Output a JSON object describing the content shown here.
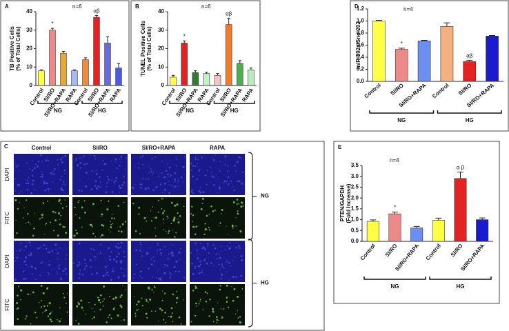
{
  "chart_data": [
    {
      "type": "bar",
      "panel": "A",
      "n_label": "n=6",
      "y_label": [
        "TB Positive Cells",
        "(% of Total Cells)"
      ],
      "categories": [
        "Control",
        "SI/RO",
        "SI/RO+RAPA",
        "RAPA",
        "Control",
        "SI/RO",
        "SI/RO+RAPA",
        "RAPA"
      ],
      "values": [
        8,
        30,
        17.5,
        8,
        14,
        37,
        23,
        9.5
      ],
      "errors": [
        0.5,
        1,
        1,
        0.5,
        1,
        1,
        3.5,
        2.5
      ],
      "colors": [
        "#ffff44",
        "#ec8a8a",
        "#e4a83c",
        "#a8b8f0",
        "#f08a3c",
        "#e52222",
        "#6a6ad8",
        "#4a5ae6"
      ],
      "bar_labels": [
        null,
        "*",
        null,
        null,
        null,
        "αβ",
        null,
        null
      ],
      "groups": [
        "NG",
        "HG"
      ],
      "ylim": [
        0,
        40
      ],
      "yticks": [
        0,
        10,
        20,
        30,
        40
      ]
    },
    {
      "type": "bar",
      "panel": "B",
      "n_label": "n=6",
      "y_label": [
        "TUNEL Positive Cells",
        "(% of Total Cells)"
      ],
      "categories": [
        "Control",
        "SI/RO",
        "SI/RO+RAPA",
        "RAPA",
        "Control",
        "SI/RO",
        "SI/RO+RAPA",
        "RAPA"
      ],
      "values": [
        4.5,
        23,
        7,
        6.5,
        5.5,
        33,
        12,
        8.5
      ],
      "errors": [
        1,
        1.2,
        1,
        0.7,
        1,
        3.5,
        1.5,
        1
      ],
      "colors": [
        "#ffff44",
        "#e52222",
        "#2e7d32",
        "#c4f0c4",
        "#f4c4c4",
        "#f07c2a",
        "#4cae4c",
        "#b8ecb8"
      ],
      "bar_labels": [
        null,
        "*",
        null,
        null,
        null,
        "αβ",
        null,
        null
      ],
      "groups": [
        "NG",
        "HG"
      ],
      "ylim": [
        0,
        40
      ],
      "yticks": [
        0,
        10,
        20,
        30,
        40
      ]
    },
    {
      "type": "bar",
      "panel": "D",
      "n_label": "n=4",
      "y_label": [
        "miR-302a/Sno-202"
      ],
      "categories": [
        "Control",
        "SI/RO",
        "SI/RO+RAPA",
        "Control",
        "SI/RO",
        "SI/RO+RAPA"
      ],
      "values": [
        1.0,
        0.53,
        0.67,
        0.91,
        0.33,
        0.75
      ],
      "errors": [
        0.01,
        0.02,
        0.01,
        0.06,
        0.02,
        0.01
      ],
      "colors": [
        "#ffff44",
        "#ec8a8a",
        "#6b8ef0",
        "#f4b080",
        "#e52222",
        "#1a1ad0"
      ],
      "bar_labels": [
        null,
        "*",
        null,
        null,
        "αβ",
        null
      ],
      "groups": [
        "NG",
        "HG"
      ],
      "ylim": [
        0,
        1.2
      ],
      "yticks": [
        {
          "value": 0,
          "label": "0.0"
        },
        0.2,
        0.4,
        0.6,
        0.8,
        {
          "value": 1,
          "label": "1.0"
        },
        1.2
      ]
    },
    {
      "type": "bar",
      "panel": "E",
      "n_label": "n=4",
      "y_label": [
        "PTEN/GAPDH",
        "(Fold Increase)"
      ],
      "categories": [
        "Control",
        "SI/RO",
        "SI/RO+RAPA",
        "Control",
        "SI/RO",
        "SI/RO+RAPA"
      ],
      "values": [
        0.92,
        1.27,
        0.62,
        0.97,
        2.9,
        1.0
      ],
      "errors": [
        0.07,
        0.08,
        0.07,
        0.1,
        0.3,
        0.08
      ],
      "colors": [
        "#ffff44",
        "#ec8a8a",
        "#6b8ef0",
        "#ffff44",
        "#e52222",
        "#1a1ad0"
      ],
      "bar_labels": [
        null,
        "*",
        null,
        null,
        "α β",
        null
      ],
      "groups": [
        "NG",
        "HG"
      ],
      "ylim": [
        0,
        3.5
      ],
      "yticks": [
        {
          "value": 0,
          "label": "0.0"
        },
        0.5,
        {
          "value": 1,
          "label": "1.0"
        },
        1.5,
        {
          "value": 2,
          "label": "2.0"
        },
        2.5,
        {
          "value": 3,
          "label": "3.0"
        },
        3.5
      ]
    }
  ],
  "image_panel": {
    "panel": "C",
    "columns": [
      "Control",
      "SI/RO",
      "SI/RO+RAPA",
      "RAPA"
    ],
    "rows": [
      "DAPI",
      "FITC",
      "DAPI",
      "FITC"
    ],
    "groups": [
      "NG",
      "HG"
    ]
  }
}
